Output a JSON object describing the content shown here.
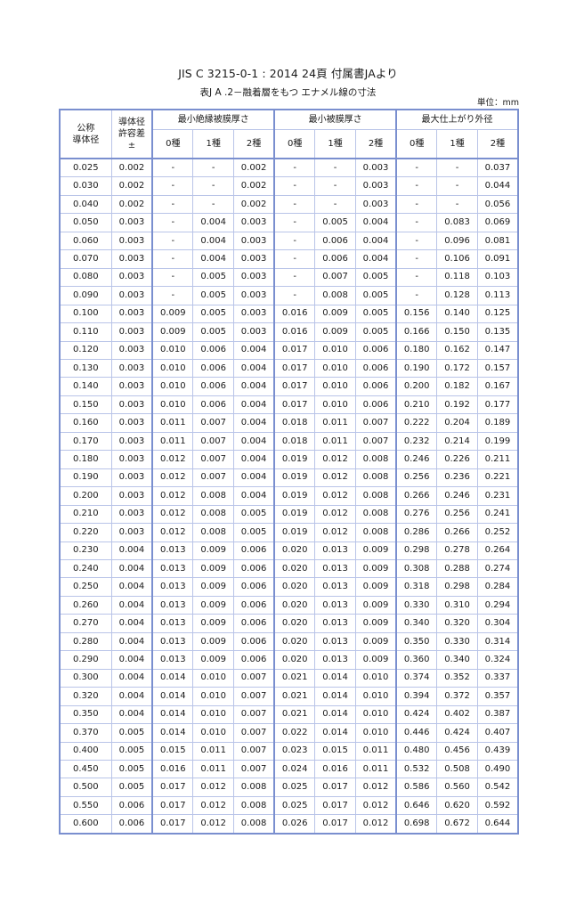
{
  "title": "JIS C 3215-0-1 : 2014  24頁  付属書JAより",
  "subtitle": "表J A .2－融着層をもつ エナメル線の寸法",
  "unit": "単位：mm",
  "headers": {
    "nominal": "公称\n導体径",
    "tolerance": "導体径\n許容差\n±",
    "groups": [
      "最小絶縁被膜厚さ",
      "最小被膜厚さ",
      "最大仕上がり外径"
    ],
    "classes": [
      "0種",
      "1種",
      "2種"
    ]
  },
  "rows": [
    [
      "0.025",
      "0.002",
      "-",
      "-",
      "0.002",
      "-",
      "-",
      "0.003",
      "-",
      "-",
      "0.037"
    ],
    [
      "0.030",
      "0.002",
      "-",
      "-",
      "0.002",
      "-",
      "-",
      "0.003",
      "-",
      "-",
      "0.044"
    ],
    [
      "0.040",
      "0.002",
      "-",
      "-",
      "0.002",
      "-",
      "-",
      "0.003",
      "-",
      "-",
      "0.056"
    ],
    [
      "0.050",
      "0.003",
      "-",
      "0.004",
      "0.003",
      "-",
      "0.005",
      "0.004",
      "-",
      "0.083",
      "0.069"
    ],
    [
      "0.060",
      "0.003",
      "-",
      "0.004",
      "0.003",
      "-",
      "0.006",
      "0.004",
      "-",
      "0.096",
      "0.081"
    ],
    [
      "0.070",
      "0.003",
      "-",
      "0.004",
      "0.003",
      "-",
      "0.006",
      "0.004",
      "-",
      "0.106",
      "0.091"
    ],
    [
      "0.080",
      "0.003",
      "-",
      "0.005",
      "0.003",
      "-",
      "0.007",
      "0.005",
      "-",
      "0.118",
      "0.103"
    ],
    [
      "0.090",
      "0.003",
      "-",
      "0.005",
      "0.003",
      "-",
      "0.008",
      "0.005",
      "-",
      "0.128",
      "0.113"
    ],
    [
      "0.100",
      "0.003",
      "0.009",
      "0.005",
      "0.003",
      "0.016",
      "0.009",
      "0.005",
      "0.156",
      "0.140",
      "0.125"
    ],
    [
      "0.110",
      "0.003",
      "0.009",
      "0.005",
      "0.003",
      "0.016",
      "0.009",
      "0.005",
      "0.166",
      "0.150",
      "0.135"
    ],
    [
      "0.120",
      "0.003",
      "0.010",
      "0.006",
      "0.004",
      "0.017",
      "0.010",
      "0.006",
      "0.180",
      "0.162",
      "0.147"
    ],
    [
      "0.130",
      "0.003",
      "0.010",
      "0.006",
      "0.004",
      "0.017",
      "0.010",
      "0.006",
      "0.190",
      "0.172",
      "0.157"
    ],
    [
      "0.140",
      "0.003",
      "0.010",
      "0.006",
      "0.004",
      "0.017",
      "0.010",
      "0.006",
      "0.200",
      "0.182",
      "0.167"
    ],
    [
      "0.150",
      "0.003",
      "0.010",
      "0.006",
      "0.004",
      "0.017",
      "0.010",
      "0.006",
      "0.210",
      "0.192",
      "0.177"
    ],
    [
      "0.160",
      "0.003",
      "0.011",
      "0.007",
      "0.004",
      "0.018",
      "0.011",
      "0.007",
      "0.222",
      "0.204",
      "0.189"
    ],
    [
      "0.170",
      "0.003",
      "0.011",
      "0.007",
      "0.004",
      "0.018",
      "0.011",
      "0.007",
      "0.232",
      "0.214",
      "0.199"
    ],
    [
      "0.180",
      "0.003",
      "0.012",
      "0.007",
      "0.004",
      "0.019",
      "0.012",
      "0.008",
      "0.246",
      "0.226",
      "0.211"
    ],
    [
      "0.190",
      "0.003",
      "0.012",
      "0.007",
      "0.004",
      "0.019",
      "0.012",
      "0.008",
      "0.256",
      "0.236",
      "0.221"
    ],
    [
      "0.200",
      "0.003",
      "0.012",
      "0.008",
      "0.004",
      "0.019",
      "0.012",
      "0.008",
      "0.266",
      "0.246",
      "0.231"
    ],
    [
      "0.210",
      "0.003",
      "0.012",
      "0.008",
      "0.005",
      "0.019",
      "0.012",
      "0.008",
      "0.276",
      "0.256",
      "0.241"
    ],
    [
      "0.220",
      "0.003",
      "0.012",
      "0.008",
      "0.005",
      "0.019",
      "0.012",
      "0.008",
      "0.286",
      "0.266",
      "0.252"
    ],
    [
      "0.230",
      "0.004",
      "0.013",
      "0.009",
      "0.006",
      "0.020",
      "0.013",
      "0.009",
      "0.298",
      "0.278",
      "0.264"
    ],
    [
      "0.240",
      "0.004",
      "0.013",
      "0.009",
      "0.006",
      "0.020",
      "0.013",
      "0.009",
      "0.308",
      "0.288",
      "0.274"
    ],
    [
      "0.250",
      "0.004",
      "0.013",
      "0.009",
      "0.006",
      "0.020",
      "0.013",
      "0.009",
      "0.318",
      "0.298",
      "0.284"
    ],
    [
      "0.260",
      "0.004",
      "0.013",
      "0.009",
      "0.006",
      "0.020",
      "0.013",
      "0.009",
      "0.330",
      "0.310",
      "0.294"
    ],
    [
      "0.270",
      "0.004",
      "0.013",
      "0.009",
      "0.006",
      "0.020",
      "0.013",
      "0.009",
      "0.340",
      "0.320",
      "0.304"
    ],
    [
      "0.280",
      "0.004",
      "0.013",
      "0.009",
      "0.006",
      "0.020",
      "0.013",
      "0.009",
      "0.350",
      "0.330",
      "0.314"
    ],
    [
      "0.290",
      "0.004",
      "0.013",
      "0.009",
      "0.006",
      "0.020",
      "0.013",
      "0.009",
      "0.360",
      "0.340",
      "0.324"
    ],
    [
      "0.300",
      "0.004",
      "0.014",
      "0.010",
      "0.007",
      "0.021",
      "0.014",
      "0.010",
      "0.374",
      "0.352",
      "0.337"
    ],
    [
      "0.320",
      "0.004",
      "0.014",
      "0.010",
      "0.007",
      "0.021",
      "0.014",
      "0.010",
      "0.394",
      "0.372",
      "0.357"
    ],
    [
      "0.350",
      "0.004",
      "0.014",
      "0.010",
      "0.007",
      "0.021",
      "0.014",
      "0.010",
      "0.424",
      "0.402",
      "0.387"
    ],
    [
      "0.370",
      "0.005",
      "0.014",
      "0.010",
      "0.007",
      "0.022",
      "0.014",
      "0.010",
      "0.446",
      "0.424",
      "0.407"
    ],
    [
      "0.400",
      "0.005",
      "0.015",
      "0.011",
      "0.007",
      "0.023",
      "0.015",
      "0.011",
      "0.480",
      "0.456",
      "0.439"
    ],
    [
      "0.450",
      "0.005",
      "0.016",
      "0.011",
      "0.007",
      "0.024",
      "0.016",
      "0.011",
      "0.532",
      "0.508",
      "0.490"
    ],
    [
      "0.500",
      "0.005",
      "0.017",
      "0.012",
      "0.008",
      "0.025",
      "0.017",
      "0.012",
      "0.586",
      "0.560",
      "0.542"
    ],
    [
      "0.550",
      "0.006",
      "0.017",
      "0.012",
      "0.008",
      "0.025",
      "0.017",
      "0.012",
      "0.646",
      "0.620",
      "0.592"
    ],
    [
      "0.600",
      "0.006",
      "0.017",
      "0.012",
      "0.008",
      "0.026",
      "0.017",
      "0.012",
      "0.698",
      "0.672",
      "0.644"
    ]
  ]
}
